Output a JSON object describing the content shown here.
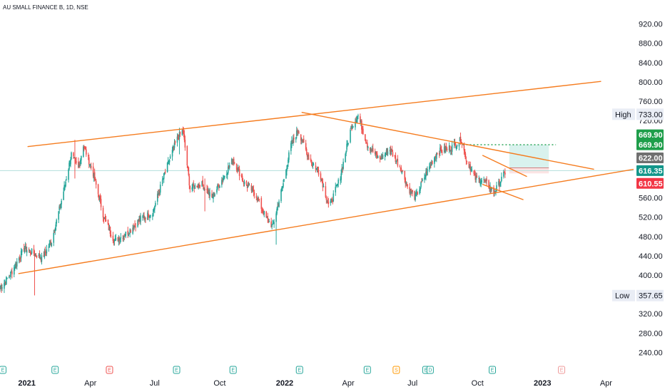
{
  "chart_data": {
    "type": "candlestick",
    "title": "AU SMALL FINANCE B, 1D, NSE",
    "symbol": "AU SMALL FINANCE B",
    "interval": "1D",
    "exchange": "NSE",
    "ylim": [
      220,
      940
    ],
    "y_ticks": [
      "920.00",
      "880.00",
      "840.00",
      "800.00",
      "760.00",
      "720.00",
      "560.00",
      "520.00",
      "480.00",
      "440.00",
      "400.00",
      "320.00",
      "280.00",
      "240.00"
    ],
    "x_ticks": [
      "2021",
      "Apr",
      "Jul",
      "Oct",
      "2022",
      "Apr",
      "Jul",
      "Oct",
      "2023",
      "Apr"
    ],
    "x_range": [
      "2020-11-24",
      "2023-05-10"
    ],
    "price_path": [
      [
        "2020-11-24",
        372
      ],
      [
        "2020-12-10",
        405
      ],
      [
        "2020-12-28",
        455
      ],
      [
        "2021-01-08",
        448
      ],
      [
        "2021-01-22",
        435
      ],
      [
        "2021-02-05",
        470
      ],
      [
        "2021-02-20",
        560
      ],
      [
        "2021-03-05",
        650
      ],
      [
        "2021-03-15",
        620
      ],
      [
        "2021-03-22",
        670
      ],
      [
        "2021-04-05",
        610
      ],
      [
        "2021-04-20",
        520
      ],
      [
        "2021-05-05",
        470
      ],
      [
        "2021-05-25",
        490
      ],
      [
        "2021-06-10",
        515
      ],
      [
        "2021-06-28",
        530
      ],
      [
        "2021-07-15",
        610
      ],
      [
        "2021-08-01",
        680
      ],
      [
        "2021-08-10",
        700
      ],
      [
        "2021-08-20",
        580
      ],
      [
        "2021-09-05",
        590
      ],
      [
        "2021-09-20",
        560
      ],
      [
        "2021-10-05",
        600
      ],
      [
        "2021-10-20",
        640
      ],
      [
        "2021-11-05",
        590
      ],
      [
        "2021-11-20",
        570
      ],
      [
        "2021-12-05",
        520
      ],
      [
        "2021-12-15",
        500
      ],
      [
        "2021-12-30",
        590
      ],
      [
        "2022-01-10",
        670
      ],
      [
        "2022-01-20",
        700
      ],
      [
        "2022-02-05",
        640
      ],
      [
        "2022-02-20",
        610
      ],
      [
        "2022-03-05",
        540
      ],
      [
        "2022-03-20",
        600
      ],
      [
        "2022-04-05",
        705
      ],
      [
        "2022-04-15",
        730
      ],
      [
        "2022-04-28",
        670
      ],
      [
        "2022-05-15",
        640
      ],
      [
        "2022-05-30",
        660
      ],
      [
        "2022-06-15",
        620
      ],
      [
        "2022-06-25",
        580
      ],
      [
        "2022-07-05",
        560
      ],
      [
        "2022-07-20",
        610
      ],
      [
        "2022-08-05",
        655
      ],
      [
        "2022-08-25",
        665
      ],
      [
        "2022-09-08",
        680
      ],
      [
        "2022-09-15",
        640
      ],
      [
        "2022-09-28",
        600
      ],
      [
        "2022-10-10",
        595
      ],
      [
        "2022-10-25",
        572
      ],
      [
        "2022-11-10",
        615
      ]
    ],
    "spikes": [
      [
        "2021-01-12",
        358,
        430
      ],
      [
        "2021-03-10",
        600,
        680
      ],
      [
        "2021-08-05",
        650,
        705
      ],
      [
        "2021-09-10",
        532,
        600
      ],
      [
        "2021-12-20",
        463,
        520
      ],
      [
        "2022-04-10",
        680,
        733
      ],
      [
        "2022-07-10",
        545,
        580
      ]
    ],
    "trendlines": [
      {
        "from": [
          "2021-01-02",
          666
        ],
        "to": [
          "2023-03-25",
          801
        ]
      },
      {
        "from": [
          "2020-12-20",
          403
        ],
        "to": [
          "2023-05-10",
          619
        ]
      },
      {
        "from": [
          "2022-01-25",
          737
        ],
        "to": [
          "2023-03-15",
          619
        ]
      },
      {
        "from": [
          "2022-10-08",
          648
        ],
        "to": [
          "2022-12-10",
          604
        ]
      },
      {
        "from": [
          "2022-10-08",
          588
        ],
        "to": [
          "2022-12-05",
          556
        ]
      }
    ],
    "target_line": {
      "value": 669.9,
      "from": "2022-09-10",
      "to": "2023-01-20"
    },
    "current_line": 616.35,
    "position_box": {
      "from": "2022-11-15",
      "to": "2023-01-10",
      "top": 669.9,
      "mid": 622.0,
      "bottom": 610.55
    },
    "price_tags": [
      {
        "label": "High",
        "value": "733.00",
        "level": 733.0,
        "kind": "plain"
      },
      {
        "label": "",
        "value": "669.90",
        "level": 669.9,
        "kind": "green",
        "offset": 14
      },
      {
        "label": "",
        "value": "669.90",
        "level": 669.9,
        "kind": "green",
        "offset": 0
      },
      {
        "label": "",
        "value": "622.00",
        "level": 622.0,
        "kind": "gray",
        "offset": 14
      },
      {
        "label": "",
        "value": "616.35",
        "level": 616.35,
        "kind": "teal",
        "offset": 0
      },
      {
        "label": "",
        "value": "610.55",
        "level": 610.55,
        "kind": "red",
        "offset": -14
      },
      {
        "label": "Low",
        "value": "357.65",
        "level": 357.65,
        "kind": "plain"
      }
    ],
    "events": [
      {
        "date": "2020-11-28",
        "letter": "E",
        "color": "#26a69a"
      },
      {
        "date": "2021-02-10",
        "letter": "E",
        "color": "#26a69a"
      },
      {
        "date": "2021-04-28",
        "letter": "E",
        "color": "#ef5350"
      },
      {
        "date": "2021-08-01",
        "letter": "E",
        "color": "#26a69a"
      },
      {
        "date": "2021-10-20",
        "letter": "E",
        "color": "#26a69a"
      },
      {
        "date": "2022-01-22",
        "letter": "E",
        "color": "#26a69a"
      },
      {
        "date": "2022-04-28",
        "letter": "E",
        "color": "#26a69a"
      },
      {
        "date": "2022-06-08",
        "letter": "S",
        "color": "#ff9800"
      },
      {
        "date": "2022-07-20",
        "letter": "E",
        "color": "#26a69a"
      },
      {
        "date": "2022-07-26",
        "letter": "D",
        "color": "#26a69a"
      },
      {
        "date": "2022-10-22",
        "letter": "E",
        "color": "#26a69a"
      },
      {
        "date": "2023-01-28",
        "letter": "E",
        "color": "#ef9a9a"
      }
    ],
    "colors": {
      "up": "#26a69a",
      "down": "#ef5350",
      "trendline": "#f57c1f",
      "target": "#1b9e4b",
      "current": "#b2dfdb",
      "tag_green": "#1e9e4a",
      "tag_gray": "#707070",
      "tag_teal": "#12968a",
      "tag_red": "#f23645",
      "box_green": "#d9f2ee",
      "box_red": "#fbe4e4",
      "axis_text": "#131722",
      "plain_tag_bg": "#e9edf5"
    }
  }
}
